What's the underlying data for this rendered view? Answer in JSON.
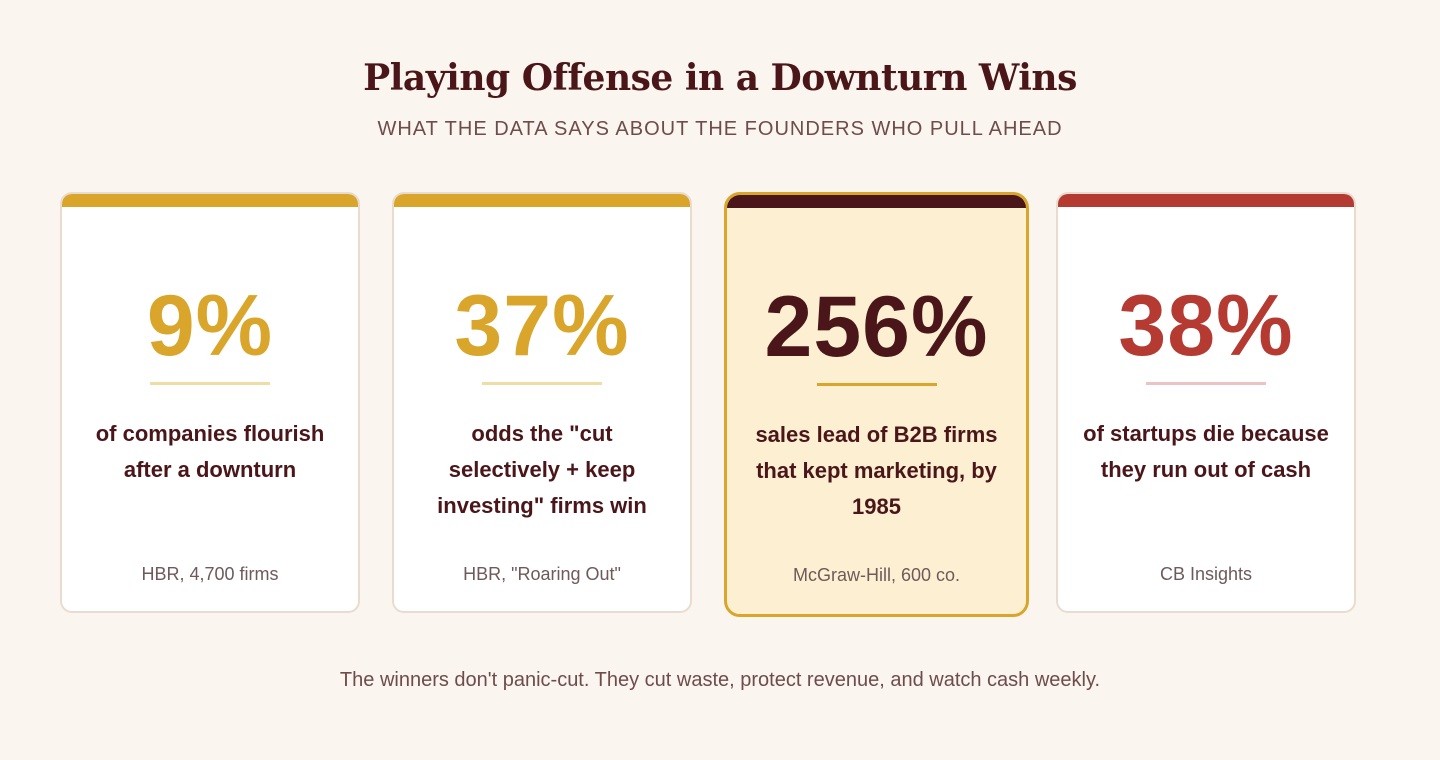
{
  "header": {
    "title": "Playing Offense in a Downturn Wins",
    "subtitle": "WHAT THE DATA SAYS ABOUT THE FOUNDERS WHO PULL AHEAD"
  },
  "cards": [
    {
      "stat": "9%",
      "description": "of companies flourish after a downturn",
      "source": "HBR, 4,700 firms",
      "accent_color": "#d9a62b",
      "rule_color": "#f0dca5"
    },
    {
      "stat": "37%",
      "description": "odds the \"cut selectively + keep investing\" firms win",
      "source": "HBR, \"Roaring Out\"",
      "accent_color": "#d9a62b",
      "rule_color": "#f0dca5"
    },
    {
      "stat": "256%",
      "description": "sales lead of B2B firms that kept marketing, by 1985",
      "source": "McGraw-Hill, 600 co.",
      "accent_color": "#4a1619",
      "rule_color": "#d9a62b",
      "highlighted": true
    },
    {
      "stat": "38%",
      "description": "of startups die because they run out of cash",
      "source": "CB Insights",
      "accent_color": "#b53a32",
      "rule_color": "#ebc3c3"
    }
  ],
  "footer": {
    "text": "The winners don't panic-cut. They cut waste, protect revenue, and watch cash weekly."
  }
}
